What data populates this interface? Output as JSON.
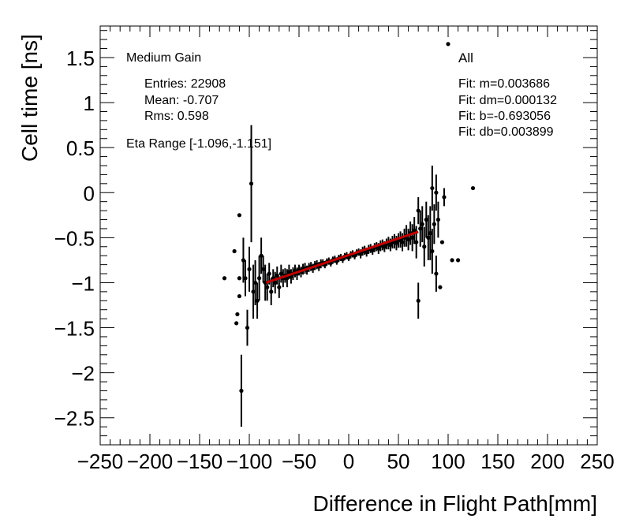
{
  "chart_data": {
    "type": "scatter",
    "title": "",
    "xlabel": "Difference in Flight Path[mm]",
    "ylabel": "Cell time [ns]",
    "xlim": [
      -250,
      250
    ],
    "ylim": [
      -2.8,
      1.85
    ],
    "xticks": [
      -250,
      -200,
      -150,
      -100,
      -50,
      0,
      50,
      100,
      150,
      200,
      250
    ],
    "xtick_labels": [
      "−250",
      "−200",
      "−150",
      "−100",
      "−50",
      "0",
      "50",
      "100",
      "150",
      "200",
      "250"
    ],
    "yticks": [
      1.5,
      1,
      0.5,
      0,
      -0.5,
      -1,
      -1.5,
      -2,
      -2.5
    ],
    "ytick_labels": [
      "1.5",
      "1",
      "0.5",
      "0",
      "−0.5",
      "−1",
      "−1.5",
      "−2",
      "−2.5"
    ],
    "grid": false,
    "stats_box": {
      "header": "Medium Gain",
      "entries": "Entries: 22908",
      "mean": "Mean: -0.707",
      "rms": "Rms: 0.598",
      "eta_range": "Eta Range [-1.096,-1.151]"
    },
    "fit_box": {
      "label": "All",
      "m": "Fit: m=0.003686",
      "dm": "Fit: dm=0.000132",
      "b": "Fit: b=-0.693056",
      "db": "Fit: db=0.003899"
    },
    "fit_line": {
      "slope": 0.003686,
      "intercept": -0.693056,
      "x_range": [
        -83,
        70
      ],
      "color": "#c00000"
    },
    "series": [
      {
        "name": "All",
        "points": [
          [
            -125,
            -0.95,
            0.0
          ],
          [
            -115,
            -0.65,
            0.0
          ],
          [
            -113,
            -1.45,
            0.0
          ],
          [
            -112,
            -1.35,
            0.0
          ],
          [
            -110,
            -0.95,
            0.0
          ],
          [
            -110,
            -1.15,
            0.0
          ],
          [
            -110,
            -0.25,
            0.0
          ],
          [
            -108,
            -2.2,
            0.4
          ],
          [
            -106,
            -0.75,
            0.25
          ],
          [
            -104,
            -0.95,
            0.2
          ],
          [
            -102,
            -1.5,
            0.2
          ],
          [
            -100,
            -0.85,
            0.25
          ],
          [
            -98,
            0.1,
            0.65
          ],
          [
            -96,
            -1.1,
            0.3
          ],
          [
            -94,
            -1.0,
            0.25
          ],
          [
            -92,
            -1.2,
            0.2
          ],
          [
            -90,
            -0.95,
            0.25
          ],
          [
            -88,
            -0.7,
            0.2
          ],
          [
            -86,
            -0.85,
            0.15
          ],
          [
            -84,
            -1.0,
            0.2
          ],
          [
            -82,
            -1.05,
            0.15
          ],
          [
            -80,
            -0.9,
            0.12
          ],
          [
            -78,
            -1.1,
            0.15
          ],
          [
            -76,
            -0.95,
            0.1
          ],
          [
            -74,
            -1.0,
            0.12
          ],
          [
            -72,
            -0.92,
            0.1
          ],
          [
            -70,
            -1.05,
            0.12
          ],
          [
            -68,
            -0.9,
            0.1
          ],
          [
            -66,
            -0.95,
            0.1
          ],
          [
            -64,
            -0.92,
            0.08
          ],
          [
            -62,
            -0.95,
            0.1
          ],
          [
            -60,
            -0.88,
            0.08
          ],
          [
            -58,
            -0.93,
            0.08
          ],
          [
            -56,
            -0.9,
            0.07
          ],
          [
            -54,
            -0.87,
            0.07
          ],
          [
            -52,
            -0.9,
            0.07
          ],
          [
            -50,
            -0.86,
            0.06
          ],
          [
            -48,
            -0.88,
            0.06
          ],
          [
            -46,
            -0.85,
            0.06
          ],
          [
            -44,
            -0.84,
            0.06
          ],
          [
            -42,
            -0.86,
            0.05
          ],
          [
            -40,
            -0.83,
            0.05
          ],
          [
            -38,
            -0.82,
            0.05
          ],
          [
            -36,
            -0.84,
            0.05
          ],
          [
            -34,
            -0.81,
            0.05
          ],
          [
            -32,
            -0.8,
            0.05
          ],
          [
            -30,
            -0.82,
            0.05
          ],
          [
            -28,
            -0.79,
            0.05
          ],
          [
            -26,
            -0.78,
            0.04
          ],
          [
            -24,
            -0.8,
            0.04
          ],
          [
            -22,
            -0.77,
            0.04
          ],
          [
            -20,
            -0.76,
            0.04
          ],
          [
            -18,
            -0.78,
            0.04
          ],
          [
            -16,
            -0.75,
            0.04
          ],
          [
            -14,
            -0.74,
            0.04
          ],
          [
            -12,
            -0.76,
            0.04
          ],
          [
            -10,
            -0.73,
            0.04
          ],
          [
            -8,
            -0.72,
            0.04
          ],
          [
            -6,
            -0.74,
            0.04
          ],
          [
            -4,
            -0.71,
            0.04
          ],
          [
            -2,
            -0.7,
            0.04
          ],
          [
            0,
            -0.72,
            0.04
          ],
          [
            2,
            -0.69,
            0.04
          ],
          [
            4,
            -0.68,
            0.04
          ],
          [
            6,
            -0.7,
            0.04
          ],
          [
            8,
            -0.67,
            0.04
          ],
          [
            10,
            -0.66,
            0.04
          ],
          [
            12,
            -0.68,
            0.05
          ],
          [
            14,
            -0.65,
            0.05
          ],
          [
            16,
            -0.64,
            0.05
          ],
          [
            18,
            -0.66,
            0.05
          ],
          [
            20,
            -0.63,
            0.05
          ],
          [
            22,
            -0.62,
            0.05
          ],
          [
            24,
            -0.64,
            0.05
          ],
          [
            26,
            -0.61,
            0.05
          ],
          [
            28,
            -0.6,
            0.05
          ],
          [
            30,
            -0.62,
            0.06
          ],
          [
            32,
            -0.59,
            0.06
          ],
          [
            34,
            -0.58,
            0.06
          ],
          [
            36,
            -0.6,
            0.06
          ],
          [
            38,
            -0.57,
            0.06
          ],
          [
            40,
            -0.56,
            0.07
          ],
          [
            42,
            -0.58,
            0.07
          ],
          [
            44,
            -0.55,
            0.07
          ],
          [
            46,
            -0.54,
            0.08
          ],
          [
            48,
            -0.56,
            0.08
          ],
          [
            50,
            -0.53,
            0.08
          ],
          [
            52,
            -0.52,
            0.09
          ],
          [
            54,
            -0.55,
            0.1
          ],
          [
            56,
            -0.5,
            0.1
          ],
          [
            58,
            -0.48,
            0.12
          ],
          [
            60,
            -0.52,
            0.12
          ],
          [
            62,
            -0.45,
            0.13
          ],
          [
            64,
            -0.5,
            0.15
          ],
          [
            66,
            -0.42,
            0.15
          ],
          [
            68,
            -0.55,
            0.18
          ],
          [
            70,
            -1.2,
            0.2
          ],
          [
            70,
            -0.2,
            0.15
          ],
          [
            72,
            -0.4,
            0.2
          ],
          [
            74,
            -0.35,
            0.2
          ],
          [
            76,
            -0.6,
            0.22
          ],
          [
            78,
            -0.3,
            0.2
          ],
          [
            80,
            -0.5,
            0.25
          ],
          [
            82,
            -0.45,
            0.3
          ],
          [
            84,
            0.05,
            0.25
          ],
          [
            84,
            -0.65,
            0.25
          ],
          [
            86,
            -0.35,
            0.22
          ],
          [
            88,
            0.0,
            0.2
          ],
          [
            88,
            -0.9,
            0.2
          ],
          [
            90,
            -0.3,
            0.2
          ],
          [
            92,
            -1.05,
            0.0
          ],
          [
            94,
            -0.55,
            0.0
          ],
          [
            96,
            -0.05,
            0.1
          ],
          [
            100,
            1.65,
            0.0
          ],
          [
            104,
            -0.75,
            0.0
          ],
          [
            110,
            -0.75,
            0.0
          ],
          [
            125,
            0.05,
            0.0
          ]
        ]
      }
    ]
  }
}
